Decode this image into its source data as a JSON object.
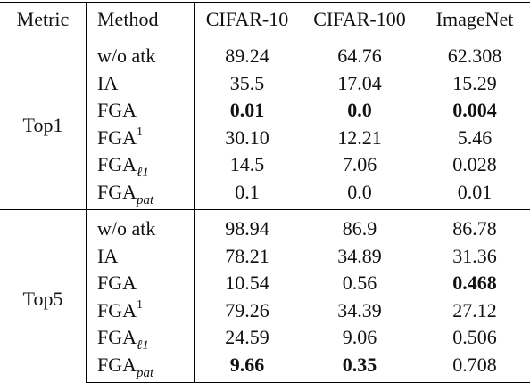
{
  "header": {
    "metric": "Metric",
    "method": "Method",
    "datasets": [
      "CIFAR-10",
      "CIFAR-100",
      "ImageNet"
    ]
  },
  "groups": [
    {
      "metric": "Top1",
      "rows": [
        {
          "method": "w/o atk",
          "values": [
            "89.24",
            "64.76",
            "62.308"
          ],
          "bold": [
            false,
            false,
            false
          ]
        },
        {
          "method": "IA",
          "values": [
            "35.5",
            "17.04",
            "15.29"
          ],
          "bold": [
            false,
            false,
            false
          ]
        },
        {
          "method": "FGA",
          "values": [
            "0.01",
            "0.0",
            "0.004"
          ],
          "bold": [
            true,
            true,
            true
          ]
        },
        {
          "method": "FGA",
          "method_sup": "1",
          "values": [
            "30.10",
            "12.21",
            "5.46"
          ],
          "bold": [
            false,
            false,
            false
          ]
        },
        {
          "method": "FGA",
          "method_sub": "ℓ1",
          "values": [
            "14.5",
            "7.06",
            "0.028"
          ],
          "bold": [
            false,
            false,
            false
          ]
        },
        {
          "method": "FGA",
          "method_sub": "pat",
          "values": [
            "0.1",
            "0.0",
            "0.01"
          ],
          "bold": [
            false,
            false,
            false
          ]
        }
      ]
    },
    {
      "metric": "Top5",
      "rows": [
        {
          "method": "w/o atk",
          "values": [
            "98.94",
            "86.9",
            "86.78"
          ],
          "bold": [
            false,
            false,
            false
          ]
        },
        {
          "method": "IA",
          "values": [
            "78.21",
            "34.89",
            "31.36"
          ],
          "bold": [
            false,
            false,
            false
          ]
        },
        {
          "method": "FGA",
          "values": [
            "10.54",
            "0.56",
            "0.468"
          ],
          "bold": [
            false,
            false,
            true
          ]
        },
        {
          "method": "FGA",
          "method_sup": "1",
          "values": [
            "79.26",
            "34.39",
            "27.12"
          ],
          "bold": [
            false,
            false,
            false
          ]
        },
        {
          "method": "FGA",
          "method_sub": "ℓ1",
          "values": [
            "24.59",
            "9.06",
            "0.506"
          ],
          "bold": [
            false,
            false,
            false
          ]
        },
        {
          "method": "FGA",
          "method_sub": "pat",
          "values": [
            "9.66",
            "0.35",
            "0.708"
          ],
          "bold": [
            true,
            true,
            false
          ]
        }
      ]
    }
  ]
}
